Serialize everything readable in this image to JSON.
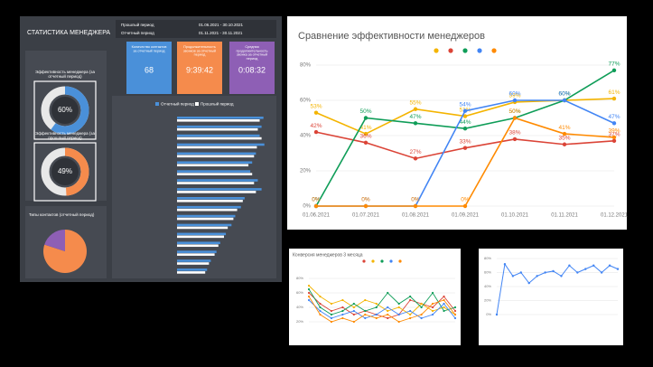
{
  "dashboard": {
    "title": "СТАТИСТИКА МЕНЕДЖЕРА",
    "periods": [
      {
        "label": "Прошлый период",
        "dates": "01.06.2021 - 30.10.2021"
      },
      {
        "label": "Отчетный период",
        "dates": "01.11.2021 - 30.11.2021"
      }
    ],
    "kpis": [
      {
        "label": "Количество контактов за отчетный период",
        "value": 68,
        "color": "#4a90d9"
      },
      {
        "label": "Продолжительность звонков за отчетный период",
        "value": "9:39:42",
        "color": "#f58b4c"
      },
      {
        "label": "Средняя продолжительность звонка за отчетный период",
        "value": "0:08:32",
        "color": "#8e5fb5"
      }
    ]
  },
  "chart_data": [
    {
      "type": "hbar",
      "categories": [
        null,
        null,
        null,
        null,
        null,
        null,
        null,
        null,
        null,
        null,
        null,
        null,
        null,
        null,
        null,
        null,
        null,
        null
      ],
      "series": [
        {
          "name": "Отчетный период",
          "color": "#4a90d9",
          "values": [
            92,
            90,
            88,
            93,
            84,
            80,
            78,
            86,
            90,
            72,
            68,
            62,
            58,
            52,
            46,
            42,
            36,
            32
          ]
        },
        {
          "name": "Прошлый период",
          "color": "#ffffff",
          "values": [
            88,
            86,
            90,
            85,
            82,
            76,
            80,
            82,
            84,
            70,
            64,
            60,
            54,
            50,
            44,
            40,
            34,
            30
          ]
        }
      ],
      "xlim": [
        0,
        100
      ]
    },
    {
      "type": "donut",
      "title": "Эффективность менеджера (за отчетный период)",
      "values": [
        60
      ],
      "value_labels": [
        "60%"
      ],
      "color": "#4a90d9"
    },
    {
      "type": "donut",
      "title": "Эффективность менеджера (за прошлый период)",
      "values": [
        49
      ],
      "value_labels": [
        "49%"
      ],
      "color": "#f58b4c"
    },
    {
      "type": "pie",
      "title": "Типы контактов (отчетный период)",
      "values": [
        80,
        20
      ],
      "colors": [
        "#f58b4c",
        "#8e5fb5"
      ]
    },
    {
      "type": "line",
      "title": "Сравнение эффективности менеджеров",
      "categories": [
        "01.06.2021",
        "01.07.2021",
        "01.08.2021",
        "01.09.2021",
        "01.10.2021",
        "01.11.2021",
        "01.12.2021"
      ],
      "series": [
        {
          "color": "#f4b400",
          "values": [
            53,
            41,
            55,
            51,
            59,
            60,
            61
          ],
          "value_labels": [
            "53%",
            "41%",
            "55%",
            "51%",
            "59%",
            "60%",
            "61%"
          ]
        },
        {
          "color": "#db4437",
          "values": [
            42,
            36,
            27,
            33,
            38,
            35,
            37
          ],
          "value_labels": [
            "42%",
            "36%",
            "27%",
            "33%",
            "38%",
            "35%",
            "37%"
          ]
        },
        {
          "color": "#0f9d58",
          "values": [
            0,
            50,
            47,
            44,
            50,
            60,
            77
          ],
          "value_labels": [
            "0%",
            "50%",
            "47%",
            "44%",
            "50%",
            "60%",
            "77%"
          ]
        },
        {
          "color": "#4285f4",
          "values": [
            0,
            0,
            0,
            54,
            60,
            60,
            47
          ],
          "value_labels": [
            "0%",
            "0%",
            "0%",
            "54%",
            "60%",
            "60%",
            "47%"
          ]
        },
        {
          "color": "#ff8a00",
          "values": [
            0,
            0,
            0,
            0,
            50,
            41,
            39
          ],
          "value_labels": [
            "0%",
            "0%",
            "0%",
            "0%",
            "50%",
            "41%",
            "39%"
          ]
        }
      ],
      "ylim": [
        0,
        80
      ],
      "yticks": [
        {
          "value": 0,
          "label": "0%"
        },
        {
          "value": 20,
          "label": "20%"
        },
        {
          "value": 40,
          "label": "40%"
        },
        {
          "value": 60,
          "label": "60%"
        },
        {
          "value": 80,
          "label": "80%"
        }
      ],
      "grid": true,
      "legend": "top"
    },
    {
      "type": "line",
      "title": "Конверсия менеджеров 3 месяца",
      "categories": [
        null,
        null,
        null,
        null,
        null,
        null,
        null,
        null,
        null,
        null,
        null,
        null,
        null,
        null
      ],
      "series": [
        {
          "color": "#db4437",
          "values": [
            60,
            45,
            35,
            40,
            30,
            35,
            30,
            25,
            30,
            50,
            45,
            40,
            55,
            35
          ]
        },
        {
          "color": "#f4b400",
          "values": [
            70,
            55,
            45,
            50,
            40,
            50,
            45,
            35,
            40,
            30,
            45,
            35,
            40,
            30
          ]
        },
        {
          "color": "#0f9d58",
          "values": [
            65,
            40,
            30,
            35,
            45,
            35,
            40,
            60,
            45,
            55,
            40,
            60,
            35,
            40
          ]
        },
        {
          "color": "#4285f4",
          "values": [
            50,
            35,
            25,
            30,
            35,
            25,
            30,
            40,
            30,
            35,
            25,
            30,
            45,
            25
          ]
        },
        {
          "color": "#ff8a00",
          "values": [
            55,
            30,
            20,
            25,
            20,
            30,
            25,
            30,
            20,
            25,
            30,
            45,
            50,
            30
          ]
        }
      ],
      "ylim": [
        0,
        100
      ],
      "yticks": [
        {
          "value": 20,
          "label": "20%"
        },
        {
          "value": 40,
          "label": "40%"
        },
        {
          "value": 60,
          "label": "60%"
        },
        {
          "value": 80,
          "label": "80%"
        }
      ],
      "grid": true,
      "legend": "top"
    },
    {
      "type": "line",
      "categories": [
        null,
        null,
        null,
        null,
        null,
        null,
        null,
        null,
        null,
        null,
        null,
        null,
        null,
        null,
        null,
        null
      ],
      "series": [
        {
          "color": "#4285f4",
          "values": [
            0,
            72,
            55,
            60,
            45,
            55,
            60,
            62,
            55,
            70,
            60,
            65,
            70,
            60,
            70,
            65
          ]
        }
      ],
      "ylim": [
        0,
        80
      ],
      "yticks": [
        {
          "value": 0,
          "label": "0%"
        },
        {
          "value": 20,
          "label": "20%"
        },
        {
          "value": 40,
          "label": "40%"
        },
        {
          "value": 60,
          "label": "60%"
        },
        {
          "value": 80,
          "label": "80%"
        }
      ],
      "grid": true
    }
  ]
}
